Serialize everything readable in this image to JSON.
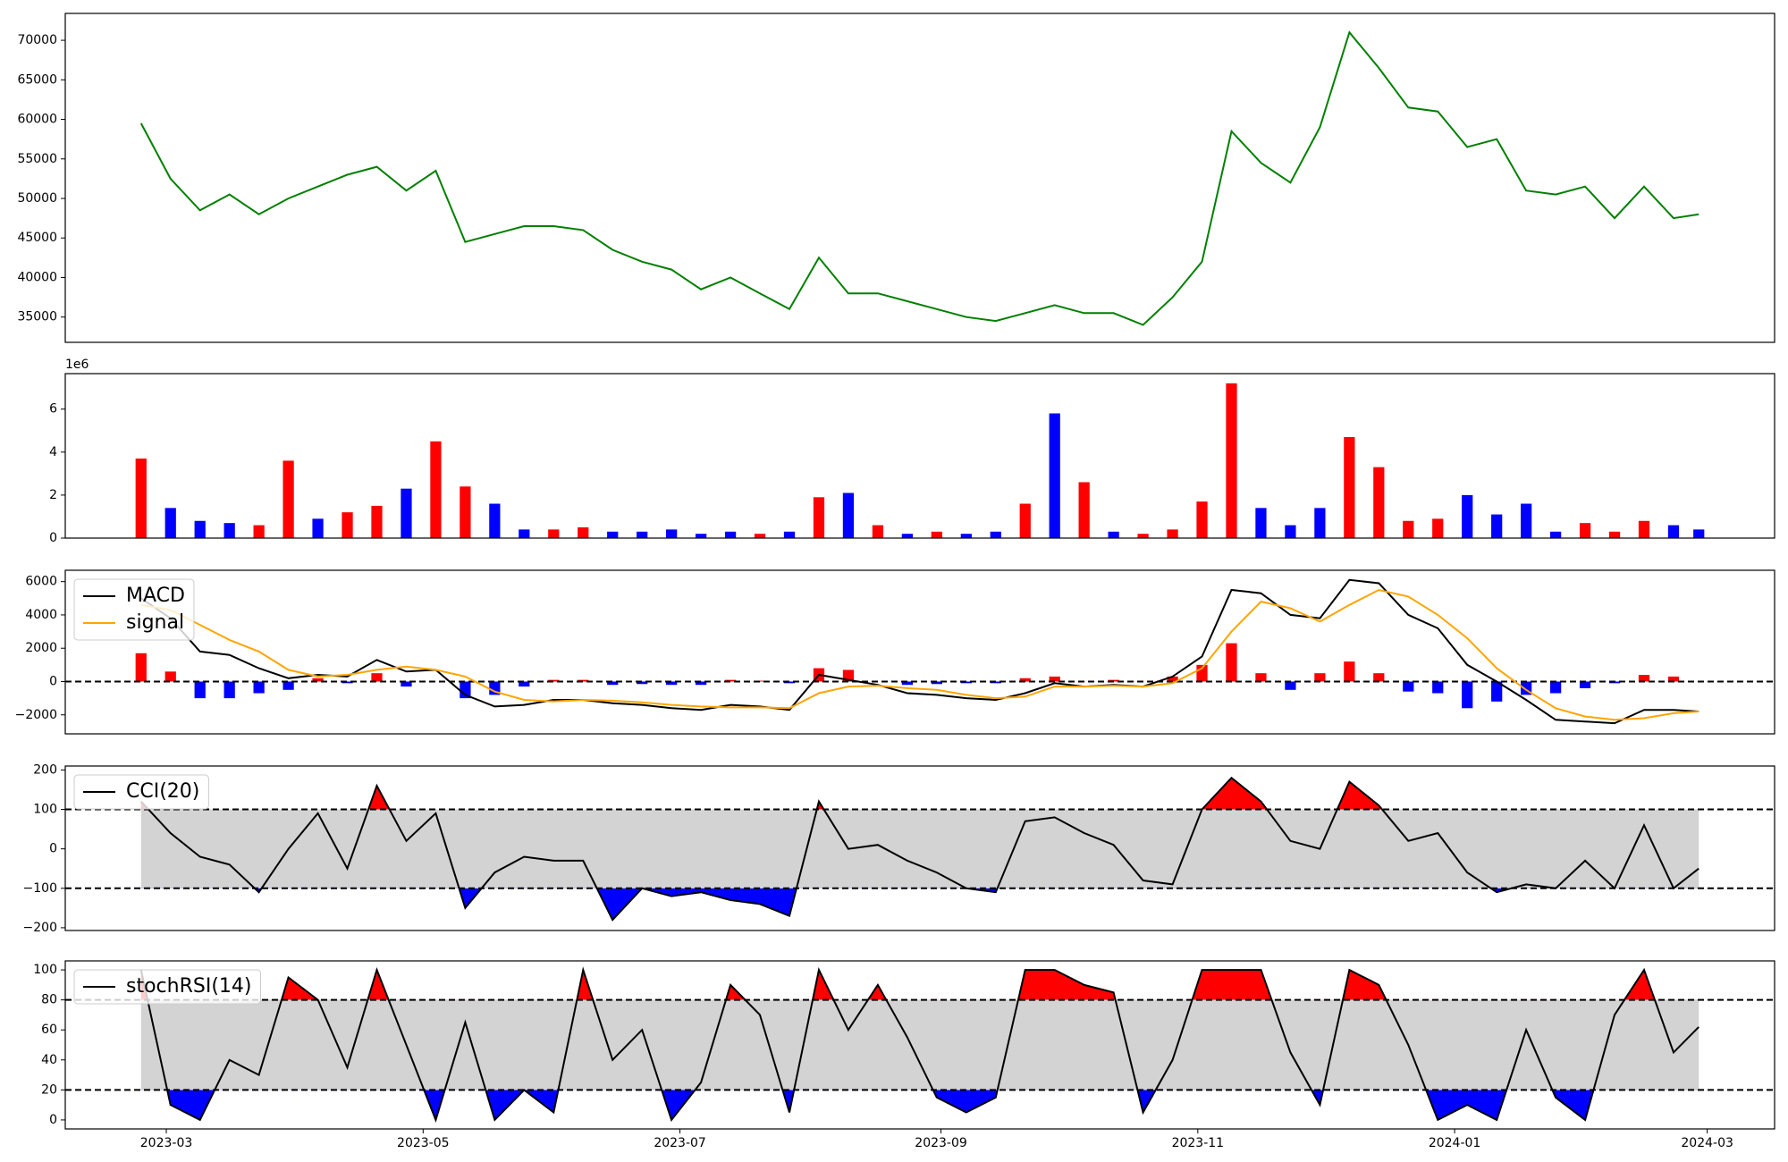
{
  "chart_data": [
    {
      "type": "line",
      "x": [
        "2023-02-23",
        "2023-03-02",
        "2023-03-09",
        "2023-03-16",
        "2023-03-23",
        "2023-03-30",
        "2023-04-06",
        "2023-04-13",
        "2023-04-20",
        "2023-04-27",
        "2023-05-04",
        "2023-05-11",
        "2023-05-18",
        "2023-05-25",
        "2023-06-01",
        "2023-06-08",
        "2023-06-15",
        "2023-06-22",
        "2023-06-29",
        "2023-07-06",
        "2023-07-13",
        "2023-07-20",
        "2023-07-27",
        "2023-08-03",
        "2023-08-10",
        "2023-08-17",
        "2023-08-24",
        "2023-08-31",
        "2023-09-07",
        "2023-09-14",
        "2023-09-21",
        "2023-09-28",
        "2023-10-05",
        "2023-10-12",
        "2023-10-19",
        "2023-10-26",
        "2023-11-02",
        "2023-11-09",
        "2023-11-16",
        "2023-11-23",
        "2023-11-30",
        "2023-12-07",
        "2023-12-14",
        "2023-12-21",
        "2023-12-28",
        "2024-01-04",
        "2024-01-11",
        "2024-01-18",
        "2024-01-25",
        "2024-02-01",
        "2024-02-08",
        "2024-02-15",
        "2024-02-22",
        "2024-02-28"
      ],
      "series": [
        {
          "color": "green",
          "values": [
            59500,
            52500,
            48500,
            50500,
            48000,
            50000,
            51500,
            53000,
            54000,
            51000,
            53500,
            44500,
            45500,
            46500,
            46500,
            46000,
            43500,
            42000,
            41000,
            38500,
            40000,
            38000,
            36000,
            42500,
            38000,
            38000,
            37000,
            36000,
            35000,
            34500,
            35500,
            36500,
            35500,
            35500,
            34000,
            37500,
            42000,
            58500,
            54500,
            52000,
            59000,
            71000,
            66500,
            61500,
            61000,
            56500,
            57500,
            51000,
            50500,
            51500,
            47500,
            51500,
            47500,
            48000
          ]
        }
      ],
      "xlim": [
        "2023-02-05",
        "2024-03-17"
      ],
      "ylim": [
        31800,
        73400
      ],
      "yticks": [
        35000,
        40000,
        45000,
        50000,
        55000,
        60000,
        65000,
        70000
      ]
    },
    {
      "type": "bar",
      "y_offset_label": "1e6",
      "x": [
        "2023-02-23",
        "2023-03-02",
        "2023-03-09",
        "2023-03-16",
        "2023-03-23",
        "2023-03-30",
        "2023-04-06",
        "2023-04-13",
        "2023-04-20",
        "2023-04-27",
        "2023-05-04",
        "2023-05-11",
        "2023-05-18",
        "2023-05-25",
        "2023-06-01",
        "2023-06-08",
        "2023-06-15",
        "2023-06-22",
        "2023-06-29",
        "2023-07-06",
        "2023-07-13",
        "2023-07-20",
        "2023-07-27",
        "2023-08-03",
        "2023-08-10",
        "2023-08-17",
        "2023-08-24",
        "2023-08-31",
        "2023-09-07",
        "2023-09-14",
        "2023-09-21",
        "2023-09-28",
        "2023-10-05",
        "2023-10-12",
        "2023-10-19",
        "2023-10-26",
        "2023-11-02",
        "2023-11-09",
        "2023-11-16",
        "2023-11-23",
        "2023-11-30",
        "2023-12-07",
        "2023-12-14",
        "2023-12-21",
        "2023-12-28",
        "2024-01-04",
        "2024-01-11",
        "2024-01-18",
        "2024-01-25",
        "2024-02-01",
        "2024-02-08",
        "2024-02-15",
        "2024-02-22",
        "2024-02-28"
      ],
      "series": [
        {
          "values": [
            3700000,
            1400000,
            800000,
            700000,
            600000,
            3600000,
            900000,
            1200000,
            1500000,
            2300000,
            4500000,
            2400000,
            1600000,
            400000,
            400000,
            500000,
            300000,
            300000,
            400000,
            200000,
            300000,
            200000,
            300000,
            1900000,
            2100000,
            600000,
            200000,
            300000,
            200000,
            300000,
            1600000,
            5800000,
            2600000,
            300000,
            200000,
            400000,
            1700000,
            7200000,
            1400000,
            600000,
            1400000,
            4700000,
            3300000,
            800000,
            900000,
            2000000,
            1100000,
            1600000,
            300000,
            700000,
            300000,
            800000,
            600000,
            400000
          ],
          "colors": [
            "red",
            "blue",
            "blue",
            "blue",
            "red",
            "red",
            "blue",
            "red",
            "red",
            "blue",
            "red",
            "red",
            "blue",
            "blue",
            "red",
            "red",
            "blue",
            "blue",
            "blue",
            "blue",
            "blue",
            "red",
            "blue",
            "red",
            "blue",
            "red",
            "blue",
            "red",
            "blue",
            "blue",
            "red",
            "blue",
            "red",
            "blue",
            "red",
            "red",
            "red",
            "red",
            "blue",
            "blue",
            "blue",
            "red",
            "red",
            "red",
            "red",
            "blue",
            "blue",
            "blue",
            "blue",
            "red",
            "red",
            "red",
            "blue",
            "blue"
          ]
        }
      ],
      "xlim": [
        "2023-02-05",
        "2024-03-17"
      ],
      "ylim": [
        0,
        7650000
      ],
      "yticks": [
        0,
        {
          "value": 2000000,
          "label": "2"
        },
        {
          "value": 4000000,
          "label": "4"
        },
        {
          "value": 6000000,
          "label": "6"
        }
      ]
    },
    {
      "type": "combo",
      "legend": "upper left",
      "reference_lines": [
        0
      ],
      "x": [
        "2023-02-23",
        "2023-03-02",
        "2023-03-09",
        "2023-03-16",
        "2023-03-23",
        "2023-03-30",
        "2023-04-06",
        "2023-04-13",
        "2023-04-20",
        "2023-04-27",
        "2023-05-04",
        "2023-05-11",
        "2023-05-18",
        "2023-05-25",
        "2023-06-01",
        "2023-06-08",
        "2023-06-15",
        "2023-06-22",
        "2023-06-29",
        "2023-07-06",
        "2023-07-13",
        "2023-07-20",
        "2023-07-27",
        "2023-08-03",
        "2023-08-10",
        "2023-08-17",
        "2023-08-24",
        "2023-08-31",
        "2023-09-07",
        "2023-09-14",
        "2023-09-21",
        "2023-09-28",
        "2023-10-05",
        "2023-10-12",
        "2023-10-19",
        "2023-10-26",
        "2023-11-02",
        "2023-11-09",
        "2023-11-16",
        "2023-11-23",
        "2023-11-30",
        "2023-12-07",
        "2023-12-14",
        "2023-12-21",
        "2023-12-28",
        "2024-01-04",
        "2024-01-11",
        "2024-01-18",
        "2024-01-25",
        "2024-02-01",
        "2024-02-08",
        "2024-02-15",
        "2024-02-22",
        "2024-02-28"
      ],
      "series": [
        {
          "type": "bar",
          "up_color": "red",
          "down_color": "blue",
          "values": [
            1700,
            600,
            -1000,
            -1000,
            -700,
            -500,
            200,
            -100,
            500,
            -300,
            0,
            -1000,
            -800,
            -300,
            100,
            100,
            -200,
            -150,
            -200,
            -200,
            100,
            50,
            -100,
            800,
            700,
            0,
            -200,
            -150,
            -100,
            -100,
            200,
            300,
            0,
            100,
            0,
            300,
            1000,
            2300,
            500,
            -500,
            500,
            1200,
            500,
            -600,
            -700,
            -1600,
            -1200,
            -800,
            -700,
            -400,
            -100,
            400,
            300,
            0
          ]
        },
        {
          "type": "line",
          "name": "MACD",
          "color": "black",
          "values": [
            5000,
            3800,
            1800,
            1600,
            800,
            200,
            400,
            300,
            1300,
            600,
            700,
            -800,
            -1500,
            -1400,
            -1100,
            -1100,
            -1300,
            -1400,
            -1600,
            -1700,
            -1400,
            -1500,
            -1700,
            400,
            100,
            -200,
            -700,
            -800,
            -1000,
            -1100,
            -700,
            -100,
            -300,
            -200,
            -300,
            300,
            1500,
            5500,
            5300,
            4000,
            3800,
            6100,
            5900,
            4000,
            3200,
            1000,
            0,
            -1100,
            -2300,
            -2400,
            -2500,
            -1700,
            -1700,
            -1800
          ]
        },
        {
          "type": "line",
          "name": "signal",
          "color": "orange",
          "values": [
            4600,
            4300,
            3400,
            2500,
            1800,
            700,
            300,
            400,
            700,
            900,
            700,
            300,
            -600,
            -1100,
            -1200,
            -1100,
            -1150,
            -1250,
            -1400,
            -1500,
            -1550,
            -1550,
            -1600,
            -700,
            -300,
            -250,
            -400,
            -500,
            -800,
            -1000,
            -900,
            -300,
            -300,
            -250,
            -300,
            -100,
            800,
            3000,
            4800,
            4400,
            3600,
            4600,
            5500,
            5100,
            4000,
            2600,
            800,
            -500,
            -1600,
            -2100,
            -2300,
            -2200,
            -1900,
            -1800
          ]
        }
      ],
      "xlim": [
        "2023-02-05",
        "2024-03-17"
      ],
      "ylim": [
        -3140,
        6680
      ],
      "yticks": [
        {
          "value": -2000,
          "label": "−2000"
        },
        0,
        2000,
        4000,
        6000
      ]
    },
    {
      "type": "band",
      "legend": "upper left",
      "reference_lines": [
        100,
        -100
      ],
      "band_color": "lightgray",
      "above_color": "red",
      "below_color": "blue",
      "x": [
        "2023-02-23",
        "2023-03-02",
        "2023-03-09",
        "2023-03-16",
        "2023-03-23",
        "2023-03-30",
        "2023-04-06",
        "2023-04-13",
        "2023-04-20",
        "2023-04-27",
        "2023-05-04",
        "2023-05-11",
        "2023-05-18",
        "2023-05-25",
        "2023-06-01",
        "2023-06-08",
        "2023-06-15",
        "2023-06-22",
        "2023-06-29",
        "2023-07-06",
        "2023-07-13",
        "2023-07-20",
        "2023-07-27",
        "2023-08-03",
        "2023-08-10",
        "2023-08-17",
        "2023-08-24",
        "2023-08-31",
        "2023-09-07",
        "2023-09-14",
        "2023-09-21",
        "2023-09-28",
        "2023-10-05",
        "2023-10-12",
        "2023-10-19",
        "2023-10-26",
        "2023-11-02",
        "2023-11-09",
        "2023-11-16",
        "2023-11-23",
        "2023-11-30",
        "2023-12-07",
        "2023-12-14",
        "2023-12-21",
        "2023-12-28",
        "2024-01-04",
        "2024-01-11",
        "2024-01-18",
        "2024-01-25",
        "2024-02-01",
        "2024-02-08",
        "2024-02-15",
        "2024-02-22",
        "2024-02-28"
      ],
      "series": [
        {
          "name": "CCI(20)",
          "color": "black",
          "values": [
            120,
            40,
            -20,
            -40,
            -110,
            0,
            90,
            -50,
            160,
            20,
            90,
            -150,
            -60,
            -20,
            -30,
            -30,
            -180,
            -100,
            -120,
            -110,
            -130,
            -140,
            -170,
            120,
            0,
            10,
            -30,
            -60,
            -100,
            -110,
            70,
            80,
            40,
            10,
            -80,
            -90,
            100,
            180,
            120,
            20,
            0,
            170,
            110,
            20,
            40,
            -60,
            -110,
            -90,
            -100,
            -30,
            -100,
            60,
            -100,
            -50
          ]
        }
      ],
      "xlim": [
        "2023-02-05",
        "2024-03-17"
      ],
      "ylim": [
        -207,
        210
      ],
      "yticks": [
        {
          "value": -200,
          "label": "−200"
        },
        {
          "value": -100,
          "label": "−100"
        },
        0,
        100,
        200
      ]
    },
    {
      "type": "band",
      "legend": "upper left",
      "reference_lines": [
        80,
        20
      ],
      "band_color": "lightgray",
      "above_color": "red",
      "below_color": "blue",
      "x": [
        "2023-02-23",
        "2023-03-02",
        "2023-03-09",
        "2023-03-16",
        "2023-03-23",
        "2023-03-30",
        "2023-04-06",
        "2023-04-13",
        "2023-04-20",
        "2023-04-27",
        "2023-05-04",
        "2023-05-11",
        "2023-05-18",
        "2023-05-25",
        "2023-06-01",
        "2023-06-08",
        "2023-06-15",
        "2023-06-22",
        "2023-06-29",
        "2023-07-06",
        "2023-07-13",
        "2023-07-20",
        "2023-07-27",
        "2023-08-03",
        "2023-08-10",
        "2023-08-17",
        "2023-08-24",
        "2023-08-31",
        "2023-09-07",
        "2023-09-14",
        "2023-09-21",
        "2023-09-28",
        "2023-10-05",
        "2023-10-12",
        "2023-10-19",
        "2023-10-26",
        "2023-11-02",
        "2023-11-09",
        "2023-11-16",
        "2023-11-23",
        "2023-11-30",
        "2023-12-07",
        "2023-12-14",
        "2023-12-21",
        "2023-12-28",
        "2024-01-04",
        "2024-01-11",
        "2024-01-18",
        "2024-01-25",
        "2024-02-01",
        "2024-02-08",
        "2024-02-15",
        "2024-02-22",
        "2024-02-28"
      ],
      "series": [
        {
          "name": "stochRSI(14)",
          "color": "black",
          "values": [
            100,
            10,
            0,
            40,
            30,
            95,
            80,
            35,
            100,
            50,
            0,
            65,
            0,
            20,
            5,
            100,
            40,
            60,
            0,
            25,
            90,
            70,
            5,
            100,
            60,
            90,
            55,
            15,
            5,
            15,
            100,
            100,
            90,
            85,
            5,
            40,
            100,
            100,
            100,
            45,
            10,
            100,
            90,
            50,
            0,
            10,
            0,
            60,
            15,
            0,
            70,
            100,
            45,
            62
          ]
        }
      ],
      "xlim": [
        "2023-02-05",
        "2024-03-17"
      ],
      "ylim": [
        -6,
        106
      ],
      "yticks": [
        0,
        20,
        40,
        60,
        80,
        100
      ],
      "xticks": [
        "2023-03",
        "2023-05",
        "2023-07",
        "2023-09",
        "2023-11",
        "2024-01",
        "2024-03"
      ]
    }
  ]
}
